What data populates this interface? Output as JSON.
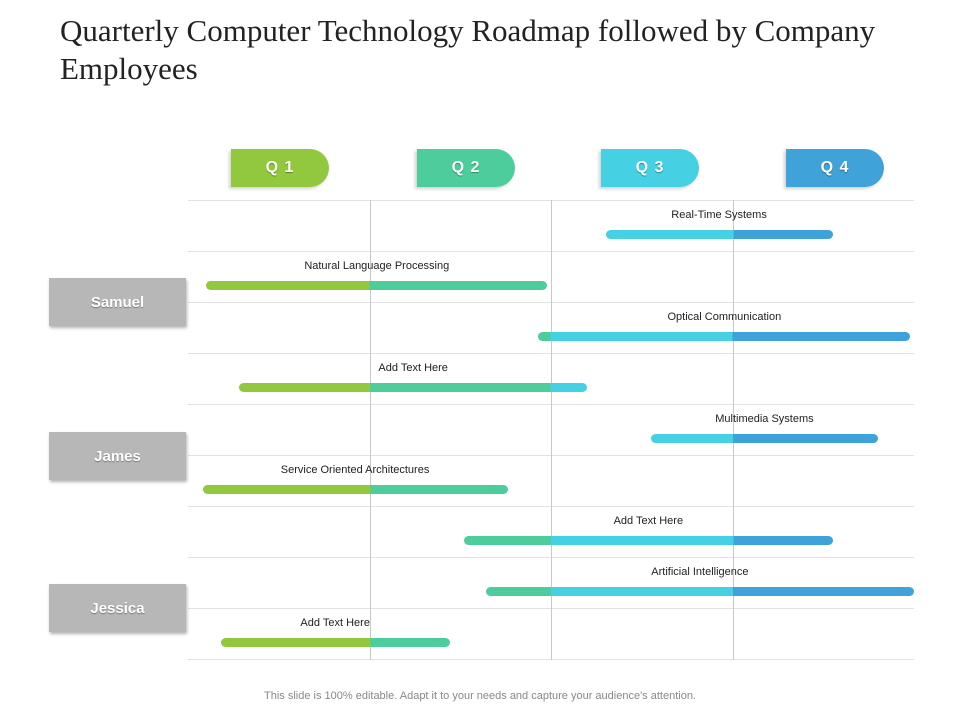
{
  "title": "Quarterly Computer Technology Roadmap followed by Company Employees",
  "quarters": [
    "Q 1",
    "Q 2",
    "Q 3",
    "Q 4"
  ],
  "colors": {
    "q1": "#92c83e",
    "q2": "#4dcd9c",
    "q3": "#45d1e3",
    "q4": "#3fa2d8",
    "person_box": "#b7b7b7"
  },
  "employees": [
    "Samuel",
    "James",
    "Jessica"
  ],
  "tasks": [
    {
      "label": "Real-Time Systems",
      "start_quarter": 3.3,
      "end_quarter": 4.55
    },
    {
      "label": "Natural Language Processing",
      "start_quarter": 1.1,
      "end_quarter": 2.98
    },
    {
      "label": "Optical Communication",
      "start_quarter": 2.93,
      "end_quarter": 4.98
    },
    {
      "label": "Add Text Here",
      "start_quarter": 1.28,
      "end_quarter": 3.2
    },
    {
      "label": "Multimedia Systems",
      "start_quarter": 3.55,
      "end_quarter": 4.8
    },
    {
      "label": "Service Oriented Architectures",
      "start_quarter": 1.08,
      "end_quarter": 2.76
    },
    {
      "label": "Add Text Here",
      "start_quarter": 2.52,
      "end_quarter": 4.55
    },
    {
      "label": "Artificial Intelligence",
      "start_quarter": 2.64,
      "end_quarter": 5.0
    },
    {
      "label": "Add Text Here",
      "start_quarter": 1.18,
      "end_quarter": 2.44
    }
  ],
  "footer": "This slide is 100% editable. Adapt it to your needs and capture your audience's attention."
}
